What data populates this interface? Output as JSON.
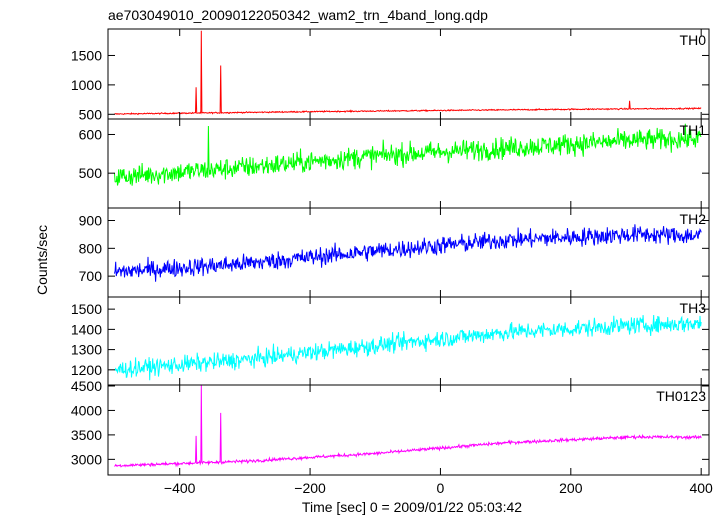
{
  "chart_data": {
    "type": "line",
    "title": "ae703049010_20090122050342_wam2_trn_4band_long.qdp",
    "xlabel": "Time [sec] 0 = 2009/01/22 05:03:42",
    "ylabel": "Counts/sec",
    "xlim": [
      -510,
      412
    ],
    "x_ticks": [
      -400,
      -200,
      0,
      200,
      400
    ],
    "grid": false,
    "panels": [
      {
        "name": "TH0",
        "color": "#ff0000",
        "ylim": [
          420,
          1950
        ],
        "y_ticks": [
          500,
          1000,
          1500
        ],
        "trend": {
          "x": [
            -500,
            -200,
            0,
            200,
            400
          ],
          "y": [
            505,
            545,
            565,
            585,
            600
          ]
        },
        "noise": 20,
        "spikes": [
          {
            "x": -375,
            "y": 960
          },
          {
            "x": -367,
            "y": 1920
          },
          {
            "x": -337,
            "y": 1330
          },
          {
            "x": 290,
            "y": 730
          }
        ]
      },
      {
        "name": "TH1",
        "color": "#00ff00",
        "ylim": [
          410,
          640
        ],
        "y_ticks": [
          500,
          600
        ],
        "trend": {
          "x": [
            -500,
            -300,
            -100,
            100,
            300,
            400
          ],
          "y": [
            490,
            515,
            545,
            565,
            585,
            590
          ]
        },
        "noise": 55,
        "spikes": [
          {
            "x": -356,
            "y": 622
          }
        ]
      },
      {
        "name": "TH2",
        "color": "#0000ff",
        "ylim": [
          625,
          945
        ],
        "y_ticks": [
          700,
          800,
          900
        ],
        "trend": {
          "x": [
            -500,
            -300,
            -100,
            100,
            300,
            400
          ],
          "y": [
            715,
            745,
            790,
            830,
            850,
            845
          ]
        },
        "noise": 65,
        "spikes": []
      },
      {
        "name": "TH3",
        "color": "#00ffff",
        "ylim": [
          1125,
          1560
        ],
        "y_ticks": [
          1200,
          1300,
          1400,
          1500
        ],
        "trend": {
          "x": [
            -500,
            -300,
            -100,
            100,
            300,
            400
          ],
          "y": [
            1200,
            1250,
            1320,
            1385,
            1420,
            1430
          ]
        },
        "noise": 85,
        "spikes": []
      },
      {
        "name": "TH0123",
        "color": "#ff00ff",
        "ylim": [
          2680,
          4520
        ],
        "y_ticks": [
          3000,
          3500,
          4000,
          4500
        ],
        "trend": {
          "x": [
            -500,
            -300,
            -100,
            100,
            300,
            400
          ],
          "y": [
            2870,
            2960,
            3120,
            3340,
            3460,
            3450
          ]
        },
        "noise": 60,
        "spikes": [
          {
            "x": -375,
            "y": 3480
          },
          {
            "x": -367,
            "y": 4520
          },
          {
            "x": -337,
            "y": 3950
          }
        ]
      }
    ]
  }
}
